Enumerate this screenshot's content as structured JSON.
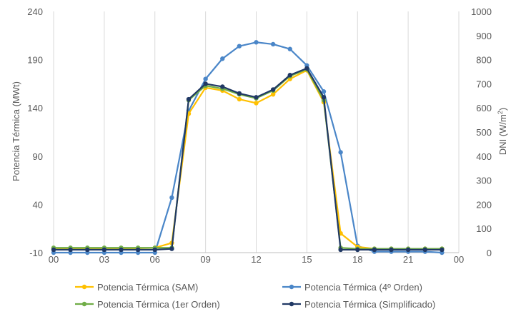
{
  "chart_data": {
    "type": "line",
    "x": [
      0,
      1,
      2,
      3,
      4,
      5,
      6,
      7,
      8,
      9,
      10,
      11,
      12,
      13,
      14,
      15,
      16,
      17,
      18,
      19,
      20,
      21,
      22,
      23
    ],
    "x_tick_labels": [
      "00",
      "03",
      "06",
      "09",
      "12",
      "15",
      "18",
      "21",
      "00"
    ],
    "ylabel_left": "Potencia Térmica (MWt)",
    "ylabel_right_prefix": "DNI (W/m",
    "ylabel_right_sup": "2",
    "ylabel_right_suffix": ")",
    "ylim_left": [
      -10,
      240
    ],
    "ylim_right": [
      0,
      1000
    ],
    "yticks_left": [
      "240",
      "190",
      "140",
      "90",
      "40",
      "-10"
    ],
    "yticks_right": [
      "1000",
      "900",
      "800",
      "700",
      "600",
      "500",
      "400",
      "300",
      "200",
      "100",
      "0"
    ],
    "grid": "vertical",
    "legend_position": "bottom",
    "series": [
      {
        "name": "Potencia Térmica (SAM)",
        "color": "#FFC000",
        "axis": "left",
        "values": [
          -6,
          -6,
          -6,
          -5.5,
          -5.5,
          -5.5,
          -5,
          0,
          134,
          161,
          158,
          149,
          145,
          154,
          170,
          179,
          146,
          10,
          -4,
          -6,
          -6,
          -6,
          -6,
          -6
        ]
      },
      {
        "name": "Potencia Térmica (4º Orden)",
        "color": "#4A86C8",
        "axis": "left",
        "values": [
          -10,
          -10,
          -10,
          -10,
          -10,
          -10,
          -10,
          47,
          137,
          170,
          191,
          204,
          208,
          206,
          201,
          184,
          157,
          94,
          -3,
          -9,
          -9,
          -9,
          -9,
          -10
        ]
      },
      {
        "name": "Potencia Térmica (1er Orden)",
        "color": "#70AD47",
        "axis": "left",
        "values": [
          -5,
          -5,
          -5,
          -5,
          -5,
          -5,
          -5,
          -5,
          148,
          163,
          160,
          154,
          150,
          158,
          173,
          180,
          148,
          -5,
          -6,
          -6,
          -6,
          -6,
          -6,
          -6
        ]
      },
      {
        "name": "Potencia Térmica (Simplificado)",
        "color": "#203864",
        "axis": "left",
        "values": [
          -7,
          -7,
          -7,
          -7,
          -7,
          -7,
          -7,
          -6,
          149,
          165,
          162,
          155,
          151,
          159,
          174,
          181,
          151,
          -7,
          -7,
          -7,
          -7,
          -7,
          -7,
          -7
        ]
      }
    ]
  }
}
